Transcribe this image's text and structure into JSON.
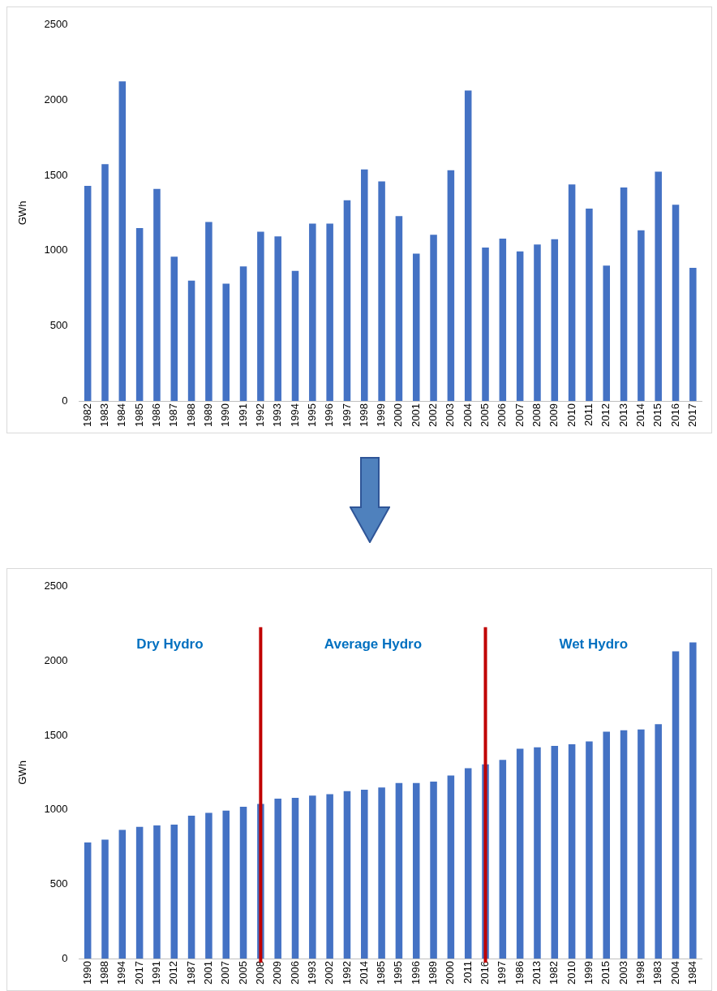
{
  "chart_data": [
    {
      "type": "bar",
      "ylabel": "GWh",
      "categories": [
        "1982",
        "1983",
        "1984",
        "1985",
        "1986",
        "1987",
        "1988",
        "1989",
        "1990",
        "1991",
        "1992",
        "1993",
        "1994",
        "1995",
        "1996",
        "1997",
        "1998",
        "1999",
        "2000",
        "2001",
        "2002",
        "2003",
        "2004",
        "2005",
        "2006",
        "2007",
        "2008",
        "2009",
        "2010",
        "2011",
        "2012",
        "2013",
        "2014",
        "2015",
        "2016",
        "2017"
      ],
      "values": [
        1430,
        1575,
        2125,
        1150,
        1410,
        960,
        800,
        1190,
        780,
        895,
        1125,
        1095,
        865,
        1180,
        1180,
        1335,
        1540,
        1460,
        1230,
        980,
        1105,
        1535,
        2065,
        1020,
        1080,
        995,
        1040,
        1075,
        1440,
        1280,
        900,
        1420,
        1135,
        1525,
        1305,
        885
      ],
      "color": "#4472c4",
      "ylim": [
        0,
        2500
      ],
      "yticks": [
        0,
        500,
        1000,
        1500,
        2000,
        2500
      ],
      "grid": false
    },
    {
      "type": "bar",
      "ylabel": "GWh",
      "categories": [
        "1990",
        "1988",
        "1994",
        "2017",
        "1991",
        "2012",
        "1987",
        "2001",
        "2007",
        "2005",
        "2008",
        "2009",
        "2006",
        "1993",
        "2002",
        "1992",
        "2014",
        "1985",
        "1995",
        "1996",
        "1989",
        "2000",
        "2011",
        "2016",
        "1997",
        "1986",
        "2013",
        "1982",
        "2010",
        "1999",
        "2015",
        "2003",
        "1998",
        "1983",
        "2004",
        "1984"
      ],
      "values": [
        780,
        800,
        865,
        885,
        895,
        900,
        960,
        980,
        995,
        1020,
        1040,
        1075,
        1080,
        1095,
        1105,
        1125,
        1135,
        1150,
        1180,
        1180,
        1190,
        1230,
        1280,
        1305,
        1335,
        1410,
        1420,
        1430,
        1440,
        1460,
        1525,
        1535,
        1540,
        1575,
        2065,
        2125
      ],
      "color": "#4472c4",
      "ylim": [
        0,
        2500
      ],
      "yticks": [
        0,
        500,
        1000,
        1500,
        2000,
        2500
      ],
      "grid": false,
      "ref_lines": [
        {
          "axis": "x",
          "value": "2008",
          "color": "#c00000"
        },
        {
          "axis": "x",
          "value": "2016",
          "color": "#c00000"
        }
      ],
      "annotations": [
        "Dry Hydro",
        "Average Hydro",
        "Wet Hydro"
      ]
    }
  ]
}
